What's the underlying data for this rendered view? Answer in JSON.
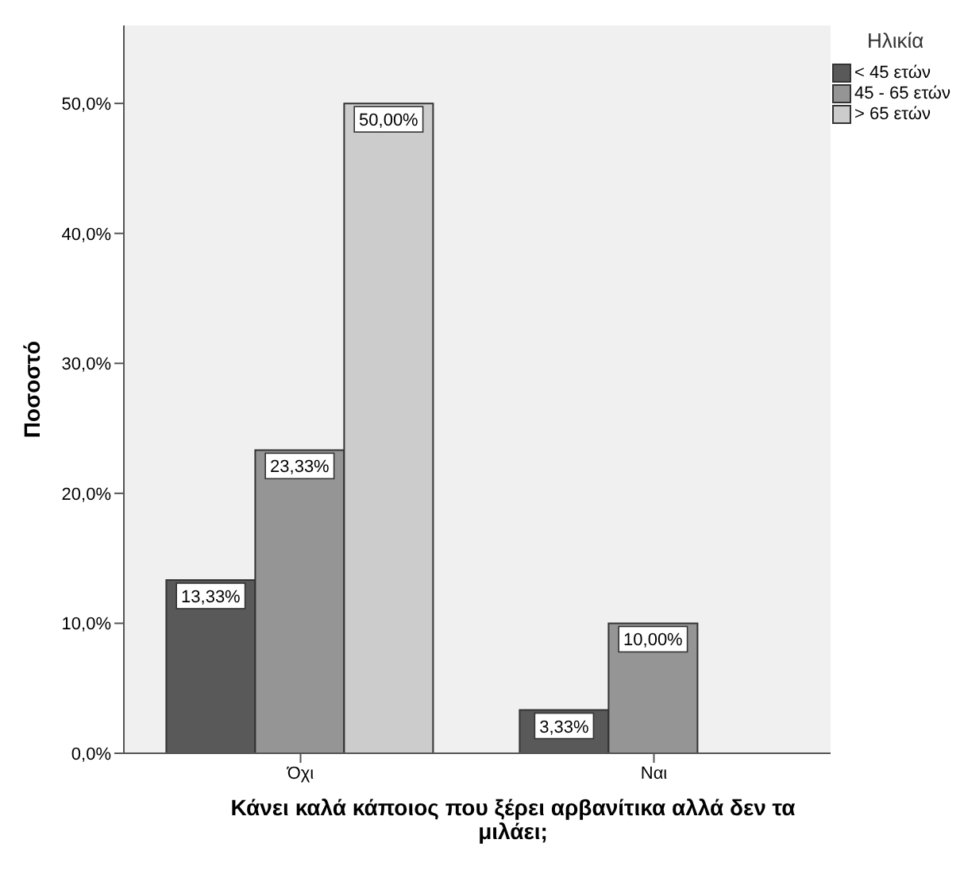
{
  "chart_data": {
    "type": "bar",
    "xlabel": "Κάνει καλά κάποιος που ξέρει αρβανίτικα αλλά δεν τα μιλάει;",
    "ylabel": "Ποσοστό",
    "legend_title": "Ηλικία",
    "legend": "right",
    "categories": [
      "Όχι",
      "Ναι"
    ],
    "series": [
      {
        "name": "< 45 ετών",
        "color": "#595959",
        "values": [
          13.33,
          3.33
        ],
        "value_labels": [
          "13,33%",
          "3,33%"
        ]
      },
      {
        "name": "45 - 65 ετών",
        "color": "#959595",
        "values": [
          23.33,
          10.0
        ],
        "value_labels": [
          "23,33%",
          "10,00%"
        ]
      },
      {
        "name": "> 65 ετών",
        "color": "#cccccc",
        "values": [
          50.0,
          null
        ],
        "value_labels": [
          "50,00%",
          null
        ]
      }
    ],
    "ylim": [
      0,
      56
    ],
    "yticks": [
      {
        "value": 0,
        "label": "0,0%"
      },
      {
        "value": 10,
        "label": "10,0%"
      },
      {
        "value": 20,
        "label": "20,0%"
      },
      {
        "value": 30,
        "label": "30,0%"
      },
      {
        "value": 40,
        "label": "40,0%"
      },
      {
        "value": 50,
        "label": "50,0%"
      }
    ]
  }
}
